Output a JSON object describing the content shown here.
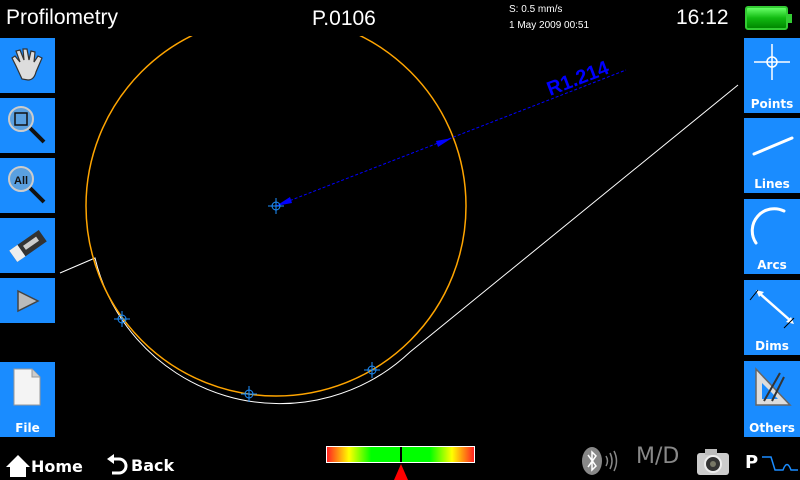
{
  "header": {
    "title": "Profilometry",
    "program": "P.0106",
    "speed": "S: 0.5 mm/s",
    "datetime": "1 May 2009  00:51",
    "clock": "16:12",
    "battery_level": 1.0
  },
  "left_toolbar": [
    {
      "name": "pan",
      "icon": "hand-icon"
    },
    {
      "name": "zoom-window",
      "icon": "zoom-window-icon"
    },
    {
      "name": "zoom-all",
      "icon": "zoom-all-icon",
      "icon_text": "All"
    },
    {
      "name": "erase",
      "icon": "eraser-icon"
    },
    {
      "name": "play",
      "icon": "play-icon"
    },
    {
      "name": "file",
      "icon": "file-icon",
      "label": "File"
    }
  ],
  "right_toolbar": [
    {
      "label": "Points",
      "icon": "crosshair-icon"
    },
    {
      "label": "Lines",
      "icon": "line-icon"
    },
    {
      "label": "Arcs",
      "icon": "arc-icon"
    },
    {
      "label": "Dims",
      "icon": "dimension-icon"
    },
    {
      "label": "Others",
      "icon": "set-square-icon"
    }
  ],
  "canvas": {
    "dimension_label": "R1.214",
    "colors": {
      "arc": "#ffa500",
      "profile": "#ffffff",
      "dimension": "#0000ff",
      "points": "#1e90ff"
    }
  },
  "footer": {
    "home": "Home",
    "back": "Back",
    "status_p": "P",
    "md": "M/D",
    "level_meter": 0.5
  }
}
